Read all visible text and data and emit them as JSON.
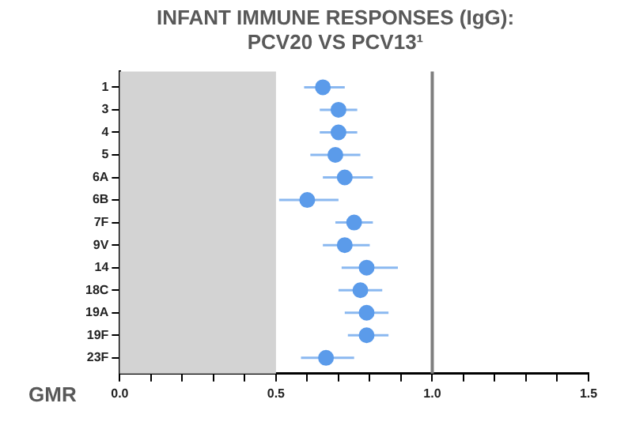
{
  "chart_data": {
    "type": "scatter",
    "orientation": "horizontal",
    "title": "INFANT IMMUNE RESPONSES (IgG):\nPCV20 VS PCV13¹",
    "xlabel": "GMR",
    "categories": [
      "1",
      "3",
      "4",
      "5",
      "6A",
      "6B",
      "7F",
      "9V",
      "14",
      "18C",
      "19A",
      "19F",
      "23F"
    ],
    "values": [
      0.65,
      0.7,
      0.7,
      0.69,
      0.72,
      0.6,
      0.75,
      0.72,
      0.79,
      0.77,
      0.79,
      0.79,
      0.66
    ],
    "errors": [
      [
        0.59,
        0.72
      ],
      [
        0.64,
        0.76
      ],
      [
        0.64,
        0.76
      ],
      [
        0.61,
        0.77
      ],
      [
        0.65,
        0.81
      ],
      [
        0.51,
        0.7
      ],
      [
        0.69,
        0.81
      ],
      [
        0.65,
        0.8
      ],
      [
        0.71,
        0.89
      ],
      [
        0.7,
        0.84
      ],
      [
        0.72,
        0.86
      ],
      [
        0.73,
        0.86
      ],
      [
        0.58,
        0.75
      ]
    ],
    "color": "#5b9bea",
    "marker": "circle",
    "grid": false,
    "legend": false,
    "xlim": [
      0,
      1.5
    ],
    "xticks": [
      {
        "value": 0,
        "label": "0.0"
      },
      {
        "value": 0.1,
        "label": null
      },
      {
        "value": 0.2,
        "label": null
      },
      {
        "value": 0.3,
        "label": null
      },
      {
        "value": 0.4,
        "label": null
      },
      {
        "value": 0.5,
        "label": "0.5"
      },
      {
        "value": 0.6,
        "label": null
      },
      {
        "value": 0.7,
        "label": null
      },
      {
        "value": 0.8,
        "label": null
      },
      {
        "value": 0.9,
        "label": null
      },
      {
        "value": 1,
        "label": "1.0"
      },
      {
        "value": 1.1,
        "label": null
      },
      {
        "value": 1.2,
        "label": null
      },
      {
        "value": 1.3,
        "label": null
      },
      {
        "value": 1.4,
        "label": null
      },
      {
        "value": 1.5,
        "label": "1.5"
      }
    ],
    "ref_lines": [
      {
        "axis": "x",
        "value": 1,
        "label": null,
        "color": "#7f7f7f"
      }
    ],
    "bands": [
      {
        "axis": "x",
        "from": 0,
        "to": 0.5,
        "label": null,
        "color": "#d3d3d3"
      }
    ]
  }
}
